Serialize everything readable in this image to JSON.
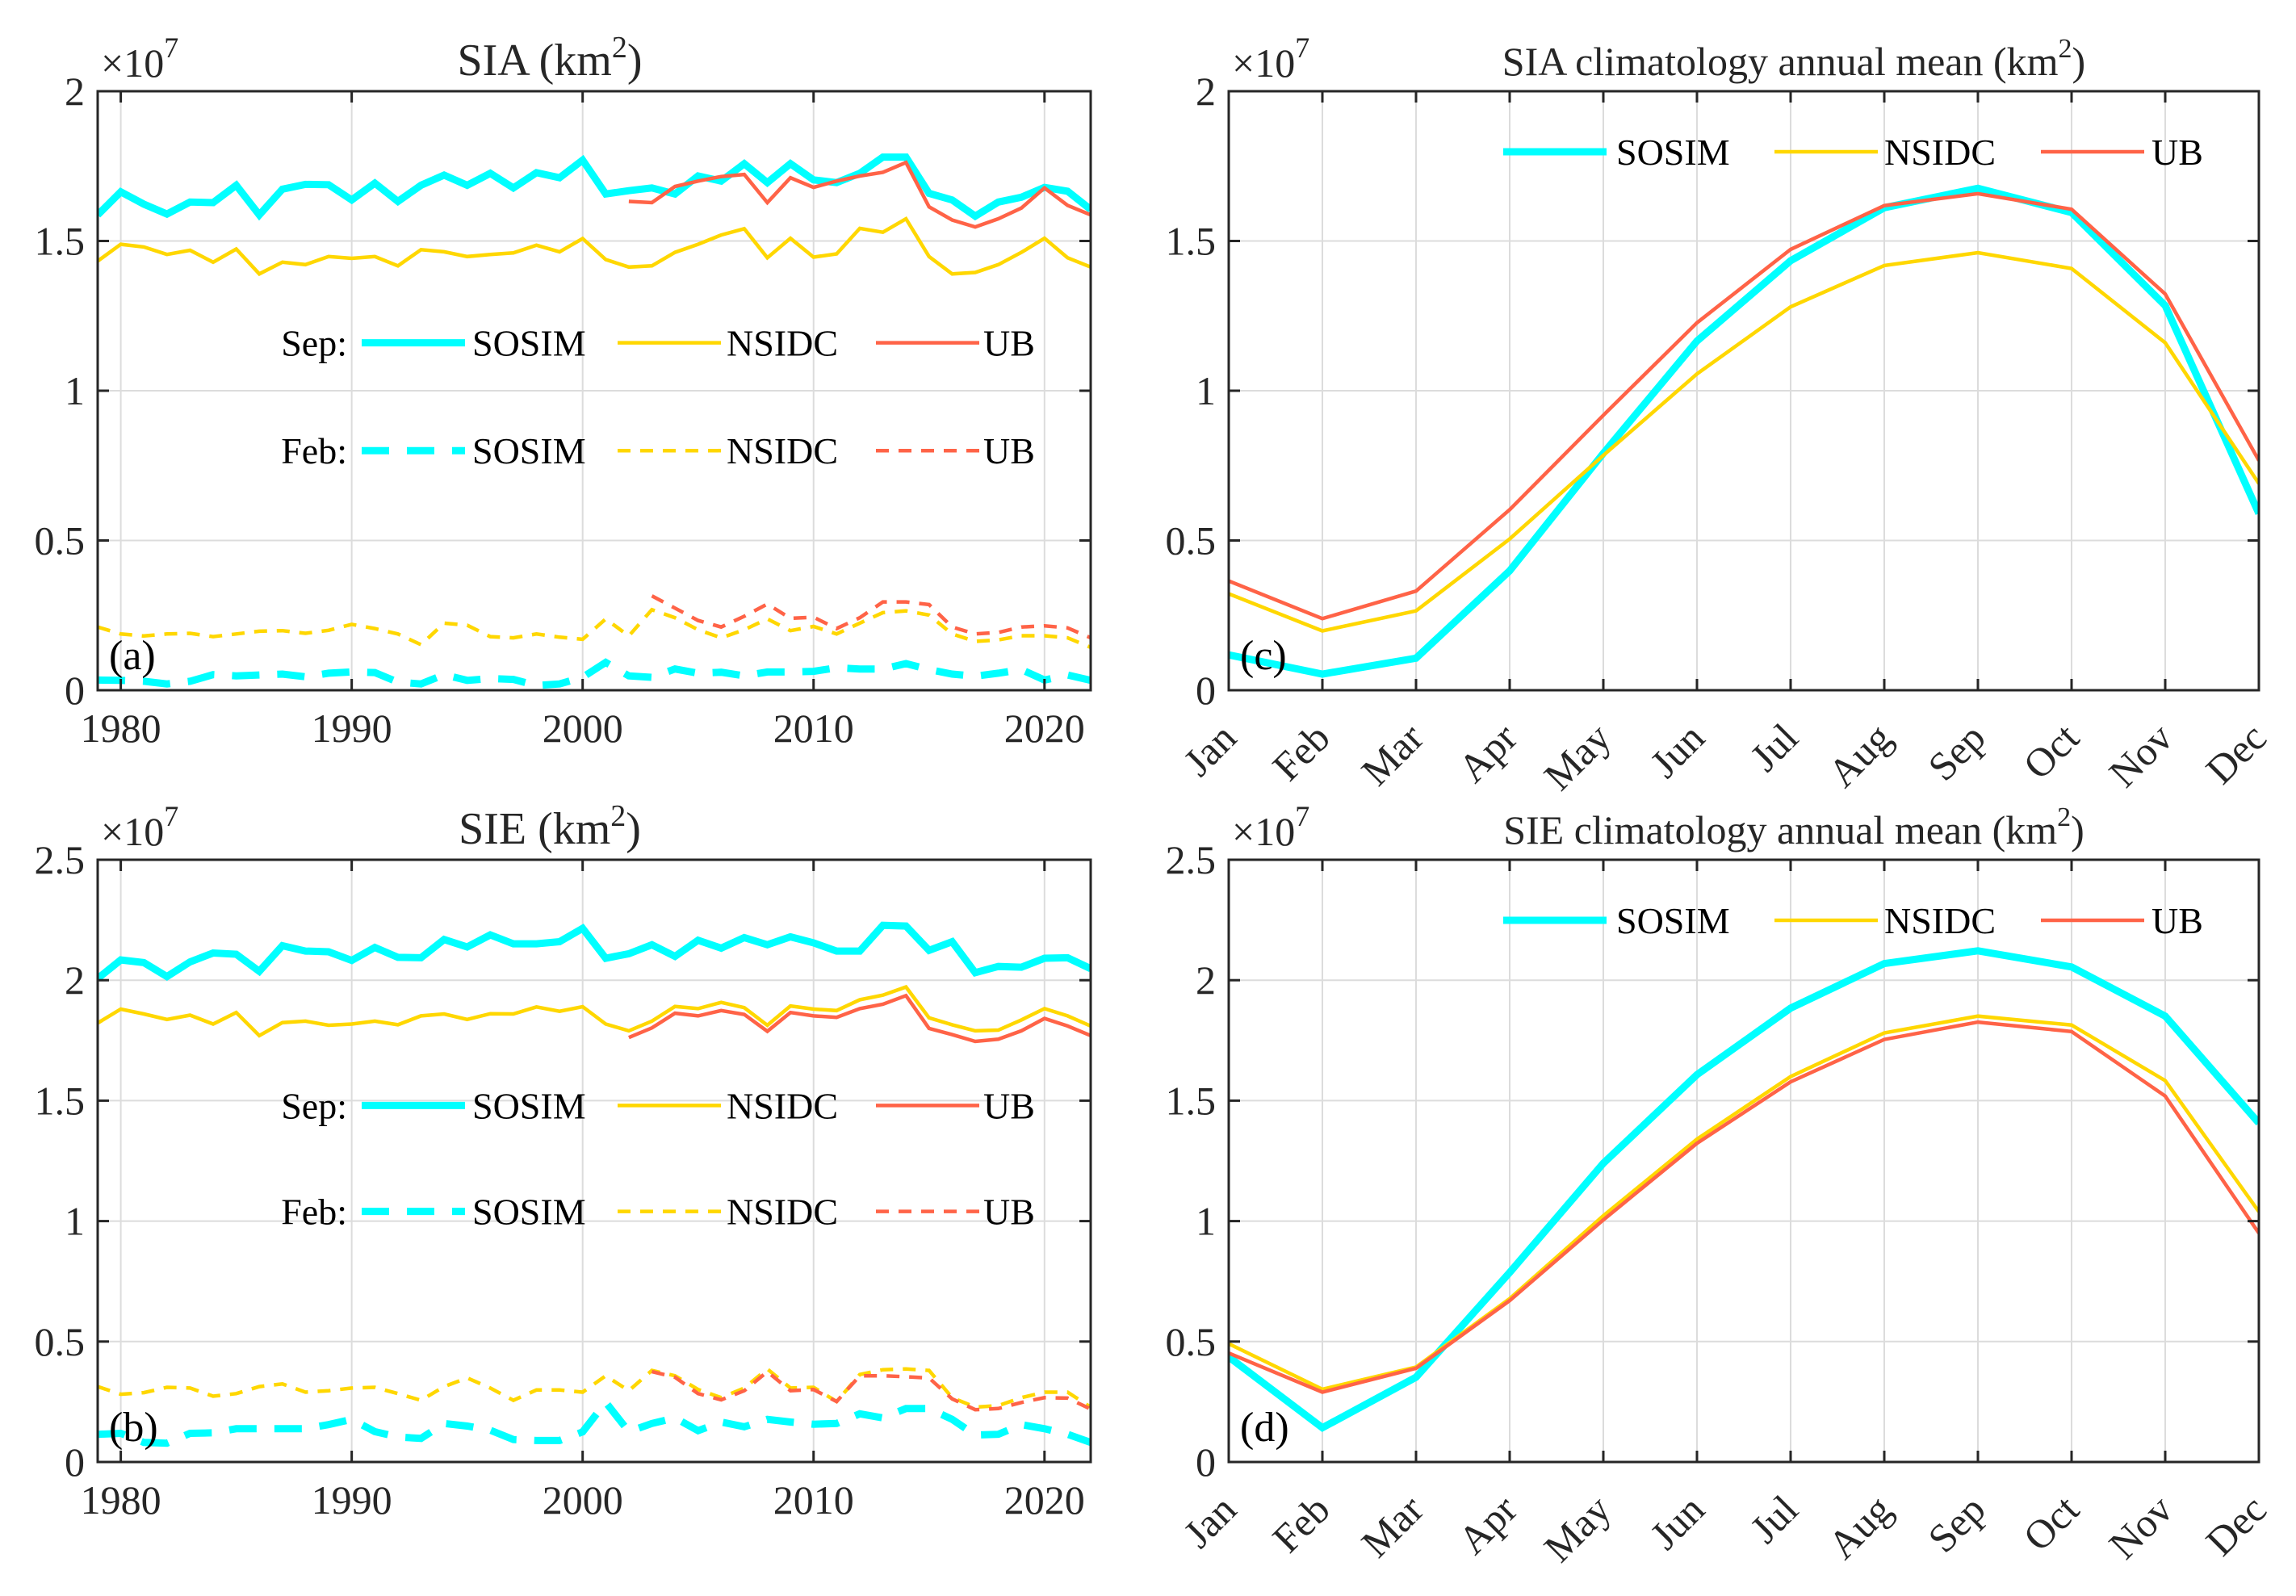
{
  "figure": {
    "colors": {
      "SOSIM": "#00FFFF",
      "NSIDC": "#FFD700",
      "UB": "#FF6347",
      "grid": "#DCDCDC",
      "axis": "#262626"
    }
  },
  "chart_data": [
    {
      "id": "a",
      "type": "line",
      "panel_label": "(a)",
      "title": "SIA (km²)",
      "title_main": "SIA (km",
      "title_sup": "2",
      "title_close": ")",
      "exponent_label": "×10",
      "exponent": "7",
      "xlabel": "",
      "ylabel": "",
      "xlim": [
        1979,
        2022
      ],
      "ylim": [
        0,
        2
      ],
      "xticks": [
        1980,
        1990,
        2000,
        2010,
        2020
      ],
      "xtick_labels": [
        "1980",
        "1990",
        "2000",
        "2010",
        "2020"
      ],
      "yticks": [
        0,
        0.5,
        1,
        1.5,
        2
      ],
      "ytick_labels": [
        "0",
        "0.5",
        "1",
        "1.5",
        "2"
      ],
      "grid": true,
      "legend": {
        "placement": "center",
        "rows": [
          {
            "label": "Sep:",
            "entries": [
              "SOSIM",
              "NSIDC",
              "UB"
            ],
            "style": "solid"
          },
          {
            "label": "Feb:",
            "entries": [
              "SOSIM",
              "NSIDC",
              "UB"
            ],
            "style": "dashed"
          }
        ]
      },
      "series": [
        {
          "name": "SOSIM",
          "month": "Sep",
          "style": "solid",
          "x_start": 1979,
          "values": [
            1.587,
            1.664,
            1.623,
            1.59,
            1.63,
            1.628,
            1.686,
            1.587,
            1.673,
            1.689,
            1.688,
            1.637,
            1.693,
            1.632,
            1.686,
            1.72,
            1.686,
            1.726,
            1.677,
            1.728,
            1.711,
            1.77,
            1.657,
            1.668,
            1.677,
            1.657,
            1.717,
            1.7,
            1.758,
            1.695,
            1.758,
            1.704,
            1.695,
            1.726,
            1.78,
            1.78,
            1.659,
            1.637,
            1.583,
            1.63,
            1.646,
            1.679,
            1.666,
            1.605
          ]
        },
        {
          "name": "NSIDC",
          "month": "Sep",
          "style": "solid",
          "x_start": 1979,
          "values": [
            1.433,
            1.489,
            1.48,
            1.455,
            1.469,
            1.429,
            1.473,
            1.39,
            1.429,
            1.421,
            1.448,
            1.442,
            1.448,
            1.417,
            1.471,
            1.464,
            1.448,
            1.455,
            1.46,
            1.486,
            1.464,
            1.508,
            1.438,
            1.413,
            1.417,
            1.462,
            1.489,
            1.52,
            1.541,
            1.444,
            1.509,
            1.446,
            1.457,
            1.542,
            1.529,
            1.574,
            1.448,
            1.39,
            1.395,
            1.421,
            1.462,
            1.509,
            1.444,
            1.413
          ]
        },
        {
          "name": "UB",
          "month": "Sep",
          "style": "solid",
          "x_start": 2002,
          "values": [
            1.632,
            1.628,
            1.682,
            1.7,
            1.715,
            1.722,
            1.628,
            1.711,
            1.679,
            1.7,
            1.717,
            1.729,
            1.762,
            1.614,
            1.57,
            1.547,
            1.574,
            1.61,
            1.677,
            1.619,
            1.587
          ]
        },
        {
          "name": "SOSIM",
          "month": "Feb",
          "style": "dashed",
          "x_start": 1979,
          "values": [
            0.034,
            0.033,
            0.03,
            0.021,
            0.03,
            0.052,
            0.048,
            0.051,
            0.054,
            0.045,
            0.057,
            0.061,
            0.059,
            0.027,
            0.021,
            0.052,
            0.033,
            0.039,
            0.036,
            0.016,
            0.021,
            0.043,
            0.093,
            0.048,
            0.043,
            0.071,
            0.057,
            0.06,
            0.048,
            0.061,
            0.061,
            0.063,
            0.075,
            0.071,
            0.071,
            0.089,
            0.069,
            0.054,
            0.047,
            0.057,
            0.069,
            0.034,
            0.051,
            0.033
          ]
        },
        {
          "name": "NSIDC",
          "month": "Feb",
          "style": "dashed",
          "x_start": 1979,
          "values": [
            0.211,
            0.188,
            0.181,
            0.188,
            0.19,
            0.179,
            0.188,
            0.197,
            0.199,
            0.19,
            0.2,
            0.22,
            0.206,
            0.188,
            0.152,
            0.224,
            0.217,
            0.179,
            0.175,
            0.188,
            0.177,
            0.17,
            0.238,
            0.181,
            0.269,
            0.242,
            0.202,
            0.175,
            0.202,
            0.238,
            0.199,
            0.213,
            0.188,
            0.224,
            0.259,
            0.265,
            0.251,
            0.188,
            0.163,
            0.168,
            0.182,
            0.182,
            0.175,
            0.143
          ]
        },
        {
          "name": "UB",
          "month": "Feb",
          "style": "dashed",
          "x_start": 2003,
          "values": [
            0.315,
            0.274,
            0.233,
            0.211,
            0.247,
            0.288,
            0.24,
            0.244,
            0.206,
            0.242,
            0.295,
            0.295,
            0.286,
            0.211,
            0.188,
            0.193,
            0.211,
            0.215,
            0.208,
            0.175
          ]
        }
      ]
    },
    {
      "id": "b",
      "type": "line",
      "panel_label": "(b)",
      "title": "SIE (km²)",
      "title_main": "SIE (km",
      "title_sup": "2",
      "title_close": ")",
      "exponent_label": "×10",
      "exponent": "7",
      "xlabel": "",
      "ylabel": "",
      "xlim": [
        1979,
        2022
      ],
      "ylim": [
        0,
        2.5
      ],
      "xticks": [
        1980,
        1990,
        2000,
        2010,
        2020
      ],
      "xtick_labels": [
        "1980",
        "1990",
        "2000",
        "2010",
        "2020"
      ],
      "yticks": [
        0,
        0.5,
        1,
        1.5,
        2,
        2.5
      ],
      "ytick_labels": [
        "0",
        "0.5",
        "1",
        "1.5",
        "2",
        "2.5"
      ],
      "grid": true,
      "legend": {
        "placement": "center",
        "rows": [
          {
            "label": "Sep:",
            "entries": [
              "SOSIM",
              "NSIDC",
              "UB"
            ],
            "style": "solid"
          },
          {
            "label": "Feb:",
            "entries": [
              "SOSIM",
              "NSIDC",
              "UB"
            ],
            "style": "dashed"
          }
        ]
      },
      "series": [
        {
          "name": "SOSIM",
          "month": "Sep",
          "style": "solid",
          "x_start": 1979,
          "values": [
            2.007,
            2.084,
            2.073,
            2.015,
            2.076,
            2.113,
            2.108,
            2.037,
            2.143,
            2.121,
            2.118,
            2.082,
            2.136,
            2.095,
            2.093,
            2.169,
            2.138,
            2.188,
            2.151,
            2.151,
            2.16,
            2.215,
            2.091,
            2.11,
            2.147,
            2.099,
            2.166,
            2.133,
            2.177,
            2.147,
            2.18,
            2.155,
            2.121,
            2.121,
            2.228,
            2.225,
            2.124,
            2.16,
            2.031,
            2.057,
            2.054,
            2.091,
            2.093,
            2.048
          ]
        },
        {
          "name": "NSIDC",
          "month": "Sep",
          "style": "solid",
          "x_start": 1979,
          "values": [
            1.822,
            1.88,
            1.86,
            1.837,
            1.855,
            1.818,
            1.866,
            1.77,
            1.824,
            1.83,
            1.813,
            1.818,
            1.83,
            1.815,
            1.852,
            1.86,
            1.837,
            1.861,
            1.86,
            1.889,
            1.871,
            1.89,
            1.818,
            1.79,
            1.83,
            1.891,
            1.882,
            1.908,
            1.886,
            1.813,
            1.893,
            1.88,
            1.874,
            1.919,
            1.938,
            1.972,
            1.844,
            1.815,
            1.79,
            1.793,
            1.835,
            1.882,
            1.852,
            1.81
          ]
        },
        {
          "name": "UB",
          "month": "Sep",
          "style": "solid",
          "x_start": 2002,
          "values": [
            1.762,
            1.802,
            1.863,
            1.852,
            1.874,
            1.858,
            1.788,
            1.866,
            1.852,
            1.846,
            1.882,
            1.9,
            1.936,
            1.8,
            1.774,
            1.746,
            1.755,
            1.79,
            1.841,
            1.81,
            1.77
          ]
        },
        {
          "name": "SOSIM",
          "month": "Feb",
          "style": "dashed",
          "x_start": 1979,
          "values": [
            0.115,
            0.119,
            0.081,
            0.078,
            0.119,
            0.121,
            0.138,
            0.138,
            0.138,
            0.138,
            0.155,
            0.177,
            0.126,
            0.104,
            0.098,
            0.16,
            0.149,
            0.132,
            0.093,
            0.089,
            0.089,
            0.125,
            0.248,
            0.126,
            0.16,
            0.183,
            0.13,
            0.166,
            0.146,
            0.177,
            0.166,
            0.157,
            0.16,
            0.2,
            0.183,
            0.222,
            0.222,
            0.177,
            0.112,
            0.115,
            0.155,
            0.138,
            0.115,
            0.081
          ]
        },
        {
          "name": "NSIDC",
          "month": "Feb",
          "style": "dashed",
          "x_start": 1979,
          "values": [
            0.313,
            0.281,
            0.288,
            0.31,
            0.307,
            0.273,
            0.284,
            0.313,
            0.324,
            0.29,
            0.296,
            0.307,
            0.31,
            0.284,
            0.256,
            0.313,
            0.349,
            0.307,
            0.256,
            0.299,
            0.299,
            0.29,
            0.358,
            0.296,
            0.38,
            0.358,
            0.301,
            0.267,
            0.307,
            0.386,
            0.307,
            0.31,
            0.251,
            0.363,
            0.383,
            0.386,
            0.38,
            0.267,
            0.228,
            0.234,
            0.267,
            0.29,
            0.29,
            0.228
          ]
        },
        {
          "name": "UB",
          "month": "Feb",
          "style": "dashed",
          "x_start": 2003,
          "values": [
            0.375,
            0.352,
            0.284,
            0.258,
            0.296,
            0.375,
            0.296,
            0.301,
            0.251,
            0.358,
            0.358,
            0.354,
            0.349,
            0.262,
            0.217,
            0.222,
            0.247,
            0.267,
            0.265,
            0.22
          ]
        }
      ]
    },
    {
      "id": "c",
      "type": "line",
      "panel_label": "(c)",
      "title": "SIA climatology annual mean (km²)",
      "title_main": "SIA climatology annual mean (km",
      "title_sup": "2",
      "title_close": ")",
      "exponent_label": "×10",
      "exponent": "7",
      "xlabel": "",
      "ylabel": "",
      "categories": [
        "Jan",
        "Feb",
        "Mar",
        "Apr",
        "May",
        "Jun",
        "Jul",
        "Aug",
        "Sep",
        "Oct",
        "Nov",
        "Dec"
      ],
      "ylim": [
        0,
        2
      ],
      "yticks": [
        0,
        0.5,
        1,
        1.5,
        2
      ],
      "ytick_labels": [
        "0",
        "0.5",
        "1",
        "1.5",
        "2"
      ],
      "grid": true,
      "legend": {
        "placement": "top-right",
        "entries": [
          "SOSIM",
          "NSIDC",
          "UB"
        ]
      },
      "series": [
        {
          "name": "SOSIM",
          "values": [
            0.118,
            0.054,
            0.107,
            0.399,
            0.791,
            1.166,
            1.434,
            1.611,
            1.676,
            1.595,
            1.284,
            0.59
          ]
        },
        {
          "name": "NSIDC",
          "values": [
            0.322,
            0.198,
            0.265,
            0.505,
            0.784,
            1.056,
            1.28,
            1.418,
            1.461,
            1.408,
            1.16,
            0.69
          ]
        },
        {
          "name": "UB",
          "values": [
            0.365,
            0.239,
            0.331,
            0.603,
            0.918,
            1.227,
            1.472,
            1.618,
            1.658,
            1.606,
            1.323,
            0.767
          ]
        }
      ]
    },
    {
      "id": "d",
      "type": "line",
      "panel_label": "(d)",
      "title": "SIE climatology annual mean (km²)",
      "title_main": "SIE climatology annual mean (km",
      "title_sup": "2",
      "title_close": ")",
      "exponent_label": "×10",
      "exponent": "7",
      "xlabel": "",
      "ylabel": "",
      "categories": [
        "Jan",
        "Feb",
        "Mar",
        "Apr",
        "May",
        "Jun",
        "Jul",
        "Aug",
        "Sep",
        "Oct",
        "Nov",
        "Dec"
      ],
      "ylim": [
        0,
        2.5
      ],
      "yticks": [
        0,
        0.5,
        1,
        1.5,
        2,
        2.5
      ],
      "ytick_labels": [
        "0",
        "0.5",
        "1",
        "1.5",
        "2",
        "2.5"
      ],
      "grid": true,
      "legend": {
        "placement": "top-right",
        "entries": [
          "SOSIM",
          "NSIDC",
          "UB"
        ]
      },
      "series": [
        {
          "name": "SOSIM",
          "values": [
            0.436,
            0.142,
            0.352,
            0.787,
            1.24,
            1.608,
            1.884,
            2.069,
            2.122,
            2.055,
            1.851,
            1.407
          ]
        },
        {
          "name": "NSIDC",
          "values": [
            0.491,
            0.302,
            0.394,
            0.678,
            1.022,
            1.34,
            1.6,
            1.781,
            1.851,
            1.814,
            1.583,
            1.039
          ]
        },
        {
          "name": "UB",
          "values": [
            0.452,
            0.29,
            0.389,
            0.67,
            1.005,
            1.323,
            1.578,
            1.754,
            1.826,
            1.787,
            1.519,
            0.95
          ]
        }
      ]
    }
  ]
}
